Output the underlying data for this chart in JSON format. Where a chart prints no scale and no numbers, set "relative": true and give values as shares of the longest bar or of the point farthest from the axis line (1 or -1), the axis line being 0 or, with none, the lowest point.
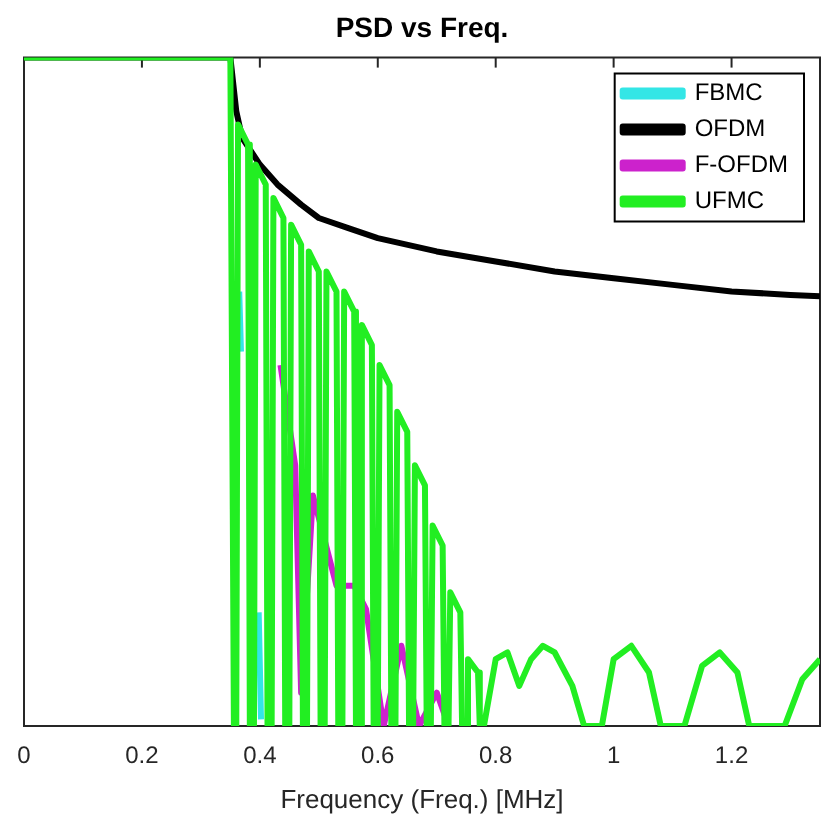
{
  "chart_data": {
    "type": "line",
    "title": "PSD vs Freq.",
    "xlabel": "Frequency (Freq.) [MHz]",
    "relative": true,
    "xlim": [
      0,
      1.35
    ],
    "xticks": [
      0,
      0.2,
      0.4,
      0.6,
      0.8,
      1,
      1.2
    ],
    "grid": false,
    "legend": "top right",
    "marker": "none",
    "line_style": "solid",
    "series": [
      {
        "name": "FBMC",
        "color": "#33e6e6",
        "x": [
          0.365,
          0.368,
          0.38,
          0.398,
          0.402
        ],
        "values": [
          0.65,
          0.56,
          null,
          0.17,
          0.01
        ]
      },
      {
        "name": "OFDM",
        "color": "#000000",
        "x": [
          0,
          0.35,
          0.36,
          0.37,
          0.4,
          0.43,
          0.47,
          0.5,
          0.55,
          0.6,
          0.7,
          0.8,
          0.9,
          1.0,
          1.1,
          1.2,
          1.3,
          1.35
        ],
        "values": [
          1,
          1,
          0.92,
          0.88,
          0.84,
          0.81,
          0.78,
          0.76,
          0.745,
          0.73,
          0.71,
          0.695,
          0.68,
          0.67,
          0.66,
          0.65,
          0.645,
          0.643
        ]
      },
      {
        "name": "F-OFDM",
        "color": "#cc22cc",
        "x": [
          0.435,
          0.46,
          0.47,
          0.49,
          0.53,
          0.56,
          0.58,
          0.61,
          0.64,
          0.67,
          0.7,
          0.72
        ],
        "values": [
          0.54,
          0.39,
          0.05,
          0.345,
          0.21,
          0.21,
          0.175,
          0,
          0.12,
          0,
          0.05,
          0
        ]
      },
      {
        "name": "UFMC",
        "color": "#22ee22",
        "x": [
          0,
          0.35,
          0.356,
          0.36,
          0.363,
          0.38,
          0.383,
          0.39,
          0.393,
          0.41,
          0.413,
          0.42,
          0.423,
          0.44,
          0.443,
          0.45,
          0.453,
          0.47,
          0.473,
          0.48,
          0.483,
          0.5,
          0.503,
          0.51,
          0.513,
          0.53,
          0.533,
          0.54,
          0.543,
          0.56,
          0.563,
          0.57,
          0.573,
          0.59,
          0.593,
          0.6,
          0.603,
          0.62,
          0.623,
          0.63,
          0.633,
          0.65,
          0.653,
          0.66,
          0.663,
          0.68,
          0.683,
          0.69,
          0.693,
          0.71,
          0.713,
          0.72,
          0.723,
          0.74,
          0.743,
          0.75,
          0.753,
          0.77,
          0.773,
          0.78,
          0.8,
          0.82,
          0.84,
          0.86,
          0.88,
          0.9,
          0.93,
          0.95,
          0.98,
          1.0,
          1.03,
          1.06,
          1.08,
          1.12,
          1.15,
          1.18,
          1.21,
          1.23,
          1.29,
          1.32,
          1.35
        ],
        "values": [
          1,
          1,
          0,
          0,
          0.9,
          0.87,
          0,
          0,
          0.84,
          0.81,
          0,
          0,
          0.79,
          0.76,
          0,
          0,
          0.75,
          0.72,
          0,
          0,
          0.71,
          0.68,
          0,
          0,
          0.68,
          0.65,
          0,
          0,
          0.65,
          0.62,
          0,
          0,
          0.6,
          0.57,
          0,
          0,
          0.54,
          0.51,
          0,
          0,
          0.47,
          0.44,
          0,
          0,
          0.39,
          0.36,
          0,
          0,
          0.3,
          0.27,
          0,
          0,
          0.2,
          0.17,
          0,
          0,
          0.1,
          0.08,
          0,
          0,
          0.1,
          0.11,
          0.06,
          0.1,
          0.12,
          0.11,
          0.06,
          0,
          0,
          0.1,
          0.12,
          0.08,
          0,
          0,
          0.09,
          0.11,
          0.08,
          0,
          0,
          0.07,
          0.1
        ]
      }
    ]
  }
}
